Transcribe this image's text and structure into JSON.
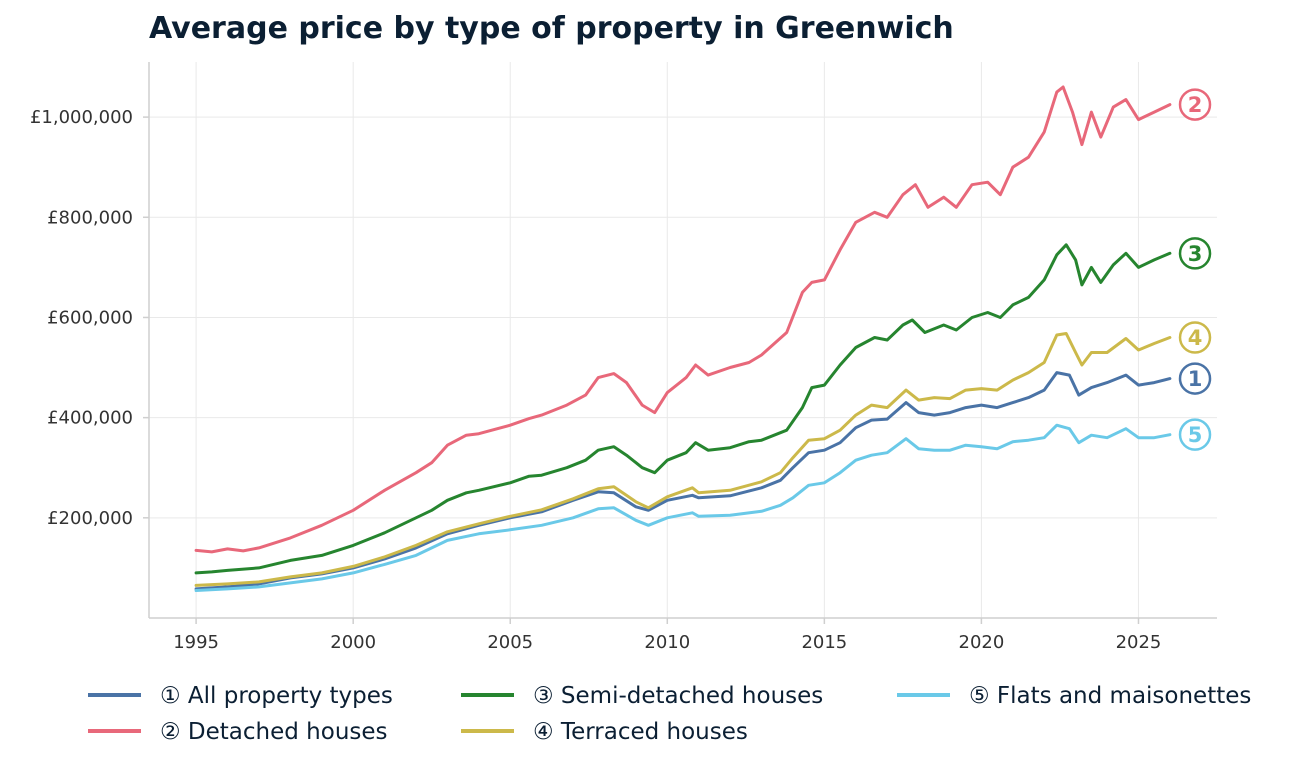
{
  "chart_data": {
    "type": "line",
    "title": "Average price by type of property in Greenwich",
    "xlabel": "",
    "ylabel": "",
    "xlim": [
      1993.5,
      2027.5
    ],
    "ylim": [
      0,
      1110000
    ],
    "x_ticks": [
      1995,
      2000,
      2005,
      2010,
      2015,
      2020,
      2025
    ],
    "x_tick_labels": [
      "1995",
      "2000",
      "2005",
      "2010",
      "2015",
      "2020",
      "2025"
    ],
    "y_ticks": [
      200000,
      400000,
      600000,
      800000,
      1000000
    ],
    "y_tick_labels": [
      "£200,000",
      "£400,000",
      "£600,000",
      "£800,000",
      "£1,000,000"
    ],
    "grid": true,
    "legend_position": "bottom",
    "series": [
      {
        "name": "① All property types",
        "marker": "1",
        "color": "#4a73a6",
        "points": [
          [
            1995,
            58000
          ],
          [
            1996,
            62000
          ],
          [
            1997,
            68000
          ],
          [
            1998,
            80000
          ],
          [
            1999,
            88000
          ],
          [
            2000,
            100000
          ],
          [
            2001,
            118000
          ],
          [
            2002,
            140000
          ],
          [
            2003,
            168000
          ],
          [
            2004,
            185000
          ],
          [
            2005,
            200000
          ],
          [
            2006,
            212000
          ],
          [
            2007,
            235000
          ],
          [
            2007.8,
            252000
          ],
          [
            2008.3,
            250000
          ],
          [
            2009,
            222000
          ],
          [
            2009.4,
            215000
          ],
          [
            2010,
            235000
          ],
          [
            2010.8,
            245000
          ],
          [
            2011,
            240000
          ],
          [
            2012,
            244000
          ],
          [
            2013,
            260000
          ],
          [
            2013.6,
            275000
          ],
          [
            2014,
            300000
          ],
          [
            2014.5,
            330000
          ],
          [
            2015,
            335000
          ],
          [
            2015.5,
            350000
          ],
          [
            2016,
            380000
          ],
          [
            2016.5,
            395000
          ],
          [
            2017,
            397000
          ],
          [
            2017.6,
            430000
          ],
          [
            2018,
            410000
          ],
          [
            2018.5,
            405000
          ],
          [
            2019,
            410000
          ],
          [
            2019.5,
            420000
          ],
          [
            2020,
            425000
          ],
          [
            2020.5,
            420000
          ],
          [
            2021,
            430000
          ],
          [
            2021.5,
            440000
          ],
          [
            2022,
            455000
          ],
          [
            2022.4,
            490000
          ],
          [
            2022.8,
            485000
          ],
          [
            2023.1,
            445000
          ],
          [
            2023.5,
            460000
          ],
          [
            2024,
            470000
          ],
          [
            2024.6,
            485000
          ],
          [
            2025,
            465000
          ],
          [
            2025.5,
            470000
          ],
          [
            2026,
            478000
          ]
        ]
      },
      {
        "name": "② Detached houses",
        "marker": "2",
        "color": "#e8687a",
        "points": [
          [
            1995,
            135000
          ],
          [
            1995.5,
            132000
          ],
          [
            1996,
            138000
          ],
          [
            1996.5,
            134000
          ],
          [
            1997,
            140000
          ],
          [
            1998,
            160000
          ],
          [
            1999,
            185000
          ],
          [
            2000,
            215000
          ],
          [
            2001,
            255000
          ],
          [
            2002,
            290000
          ],
          [
            2002.5,
            310000
          ],
          [
            2003,
            345000
          ],
          [
            2003.6,
            365000
          ],
          [
            2004,
            368000
          ],
          [
            2005,
            385000
          ],
          [
            2005.6,
            398000
          ],
          [
            2006,
            405000
          ],
          [
            2006.8,
            425000
          ],
          [
            2007.4,
            445000
          ],
          [
            2007.8,
            480000
          ],
          [
            2008.3,
            488000
          ],
          [
            2008.7,
            470000
          ],
          [
            2009.2,
            425000
          ],
          [
            2009.6,
            410000
          ],
          [
            2010,
            450000
          ],
          [
            2010.6,
            480000
          ],
          [
            2010.9,
            505000
          ],
          [
            2011.3,
            485000
          ],
          [
            2012,
            500000
          ],
          [
            2012.6,
            510000
          ],
          [
            2013,
            525000
          ],
          [
            2013.8,
            570000
          ],
          [
            2014.3,
            650000
          ],
          [
            2014.6,
            670000
          ],
          [
            2015,
            675000
          ],
          [
            2015.5,
            735000
          ],
          [
            2016,
            790000
          ],
          [
            2016.6,
            810000
          ],
          [
            2017,
            800000
          ],
          [
            2017.5,
            845000
          ],
          [
            2017.9,
            865000
          ],
          [
            2018.3,
            820000
          ],
          [
            2018.8,
            840000
          ],
          [
            2019.2,
            820000
          ],
          [
            2019.7,
            865000
          ],
          [
            2020.2,
            870000
          ],
          [
            2020.6,
            845000
          ],
          [
            2021,
            900000
          ],
          [
            2021.5,
            920000
          ],
          [
            2022,
            970000
          ],
          [
            2022.4,
            1050000
          ],
          [
            2022.6,
            1060000
          ],
          [
            2022.9,
            1010000
          ],
          [
            2023.2,
            945000
          ],
          [
            2023.5,
            1010000
          ],
          [
            2023.8,
            960000
          ],
          [
            2024.2,
            1020000
          ],
          [
            2024.6,
            1035000
          ],
          [
            2025,
            995000
          ],
          [
            2025.5,
            1010000
          ],
          [
            2026,
            1025000
          ]
        ]
      },
      {
        "name": "③ Semi-detached houses",
        "marker": "3",
        "color": "#26852f",
        "points": [
          [
            1995,
            90000
          ],
          [
            1995.5,
            92000
          ],
          [
            1996,
            95000
          ],
          [
            1997,
            100000
          ],
          [
            1998,
            115000
          ],
          [
            1999,
            125000
          ],
          [
            2000,
            145000
          ],
          [
            2001,
            170000
          ],
          [
            2002,
            200000
          ],
          [
            2002.5,
            215000
          ],
          [
            2003,
            235000
          ],
          [
            2003.6,
            250000
          ],
          [
            2004,
            255000
          ],
          [
            2005,
            270000
          ],
          [
            2005.6,
            283000
          ],
          [
            2006,
            285000
          ],
          [
            2006.8,
            300000
          ],
          [
            2007.4,
            315000
          ],
          [
            2007.8,
            335000
          ],
          [
            2008.3,
            342000
          ],
          [
            2008.7,
            325000
          ],
          [
            2009.2,
            300000
          ],
          [
            2009.6,
            290000
          ],
          [
            2010,
            315000
          ],
          [
            2010.6,
            330000
          ],
          [
            2010.9,
            350000
          ],
          [
            2011.3,
            335000
          ],
          [
            2012,
            340000
          ],
          [
            2012.6,
            352000
          ],
          [
            2013,
            355000
          ],
          [
            2013.8,
            375000
          ],
          [
            2014.3,
            420000
          ],
          [
            2014.6,
            460000
          ],
          [
            2015,
            465000
          ],
          [
            2015.5,
            505000
          ],
          [
            2016,
            540000
          ],
          [
            2016.6,
            560000
          ],
          [
            2017,
            555000
          ],
          [
            2017.5,
            585000
          ],
          [
            2017.8,
            595000
          ],
          [
            2018.2,
            570000
          ],
          [
            2018.8,
            585000
          ],
          [
            2019.2,
            575000
          ],
          [
            2019.7,
            600000
          ],
          [
            2020.2,
            610000
          ],
          [
            2020.6,
            600000
          ],
          [
            2021,
            625000
          ],
          [
            2021.5,
            640000
          ],
          [
            2022,
            675000
          ],
          [
            2022.4,
            725000
          ],
          [
            2022.7,
            745000
          ],
          [
            2023,
            715000
          ],
          [
            2023.2,
            665000
          ],
          [
            2023.5,
            700000
          ],
          [
            2023.8,
            670000
          ],
          [
            2024.2,
            705000
          ],
          [
            2024.6,
            728000
          ],
          [
            2025,
            700000
          ],
          [
            2025.5,
            715000
          ],
          [
            2026,
            728000
          ]
        ]
      },
      {
        "name": "④ Terraced houses",
        "marker": "4",
        "color": "#ccb94a",
        "points": [
          [
            1995,
            65000
          ],
          [
            1996,
            68000
          ],
          [
            1997,
            72000
          ],
          [
            1998,
            82000
          ],
          [
            1999,
            90000
          ],
          [
            2000,
            103000
          ],
          [
            2001,
            122000
          ],
          [
            2002,
            145000
          ],
          [
            2003,
            172000
          ],
          [
            2004,
            188000
          ],
          [
            2005,
            203000
          ],
          [
            2006,
            216000
          ],
          [
            2007,
            238000
          ],
          [
            2007.8,
            258000
          ],
          [
            2008.3,
            262000
          ],
          [
            2009,
            232000
          ],
          [
            2009.4,
            220000
          ],
          [
            2010,
            242000
          ],
          [
            2010.8,
            260000
          ],
          [
            2011,
            250000
          ],
          [
            2012,
            255000
          ],
          [
            2013,
            272000
          ],
          [
            2013.6,
            290000
          ],
          [
            2014,
            320000
          ],
          [
            2014.5,
            355000
          ],
          [
            2015,
            358000
          ],
          [
            2015.5,
            375000
          ],
          [
            2016,
            405000
          ],
          [
            2016.5,
            425000
          ],
          [
            2017,
            420000
          ],
          [
            2017.6,
            455000
          ],
          [
            2018,
            435000
          ],
          [
            2018.5,
            440000
          ],
          [
            2019,
            438000
          ],
          [
            2019.5,
            455000
          ],
          [
            2020,
            458000
          ],
          [
            2020.5,
            455000
          ],
          [
            2021,
            475000
          ],
          [
            2021.5,
            490000
          ],
          [
            2022,
            510000
          ],
          [
            2022.4,
            565000
          ],
          [
            2022.7,
            568000
          ],
          [
            2023,
            530000
          ],
          [
            2023.2,
            505000
          ],
          [
            2023.5,
            530000
          ],
          [
            2024,
            530000
          ],
          [
            2024.6,
            558000
          ],
          [
            2025,
            535000
          ],
          [
            2025.5,
            548000
          ],
          [
            2026,
            560000
          ]
        ]
      },
      {
        "name": "⑤ Flats and maisonettes",
        "marker": "5",
        "color": "#6ac9e8",
        "points": [
          [
            1995,
            55000
          ],
          [
            1996,
            58000
          ],
          [
            1997,
            62000
          ],
          [
            1998,
            70000
          ],
          [
            1999,
            78000
          ],
          [
            2000,
            90000
          ],
          [
            2001,
            107000
          ],
          [
            2002,
            125000
          ],
          [
            2003,
            155000
          ],
          [
            2004,
            168000
          ],
          [
            2005,
            176000
          ],
          [
            2006,
            185000
          ],
          [
            2007,
            200000
          ],
          [
            2007.8,
            218000
          ],
          [
            2008.3,
            220000
          ],
          [
            2009,
            195000
          ],
          [
            2009.4,
            185000
          ],
          [
            2010,
            200000
          ],
          [
            2010.8,
            210000
          ],
          [
            2011,
            203000
          ],
          [
            2012,
            205000
          ],
          [
            2013,
            213000
          ],
          [
            2013.6,
            225000
          ],
          [
            2014,
            240000
          ],
          [
            2014.5,
            265000
          ],
          [
            2015,
            270000
          ],
          [
            2015.5,
            290000
          ],
          [
            2016,
            315000
          ],
          [
            2016.5,
            325000
          ],
          [
            2017,
            330000
          ],
          [
            2017.6,
            358000
          ],
          [
            2018,
            338000
          ],
          [
            2018.5,
            335000
          ],
          [
            2019,
            335000
          ],
          [
            2019.5,
            345000
          ],
          [
            2020,
            342000
          ],
          [
            2020.5,
            338000
          ],
          [
            2021,
            352000
          ],
          [
            2021.5,
            355000
          ],
          [
            2022,
            360000
          ],
          [
            2022.4,
            385000
          ],
          [
            2022.8,
            378000
          ],
          [
            2023.1,
            350000
          ],
          [
            2023.5,
            365000
          ],
          [
            2024,
            360000
          ],
          [
            2024.6,
            378000
          ],
          [
            2025,
            360000
          ],
          [
            2025.5,
            360000
          ],
          [
            2026,
            366000
          ]
        ]
      }
    ]
  }
}
